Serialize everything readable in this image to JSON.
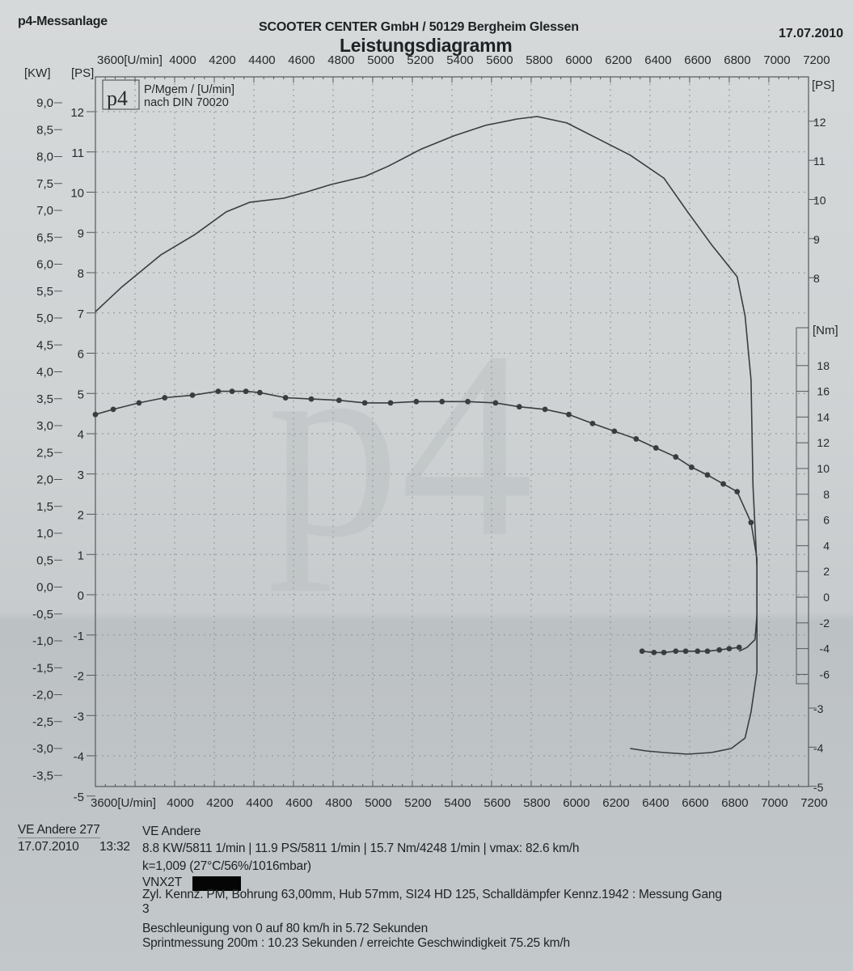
{
  "header": {
    "left": "p4-Messanlage",
    "center": "SCOOTER CENTER GmbH / 50129 Bergheim Glessen",
    "date": "17.07.2010",
    "title": "Leistungsdiagramm"
  },
  "legend_box": {
    "logo": "p4",
    "line1": "P/Mgem / [U/min]",
    "line2": "nach DIN 70020"
  },
  "watermark": "p4",
  "colors": {
    "curve": "#3a3d3f",
    "grid": "#8e9395",
    "paper": "#cfd3d4"
  },
  "chart_data": {
    "type": "line",
    "title": "Leistungsdiagramm",
    "x_axis": {
      "unit_label": "3600[U/min]",
      "range": [
        3600,
        7200
      ],
      "ticks": [
        4000,
        4200,
        4400,
        4600,
        4800,
        5000,
        5200,
        5400,
        5600,
        5800,
        6000,
        6200,
        6400,
        6600,
        6800,
        7000,
        7200
      ]
    },
    "y_left_kw": {
      "label": "[KW]",
      "range": [
        -3.5,
        9.0
      ],
      "ticks": [
        "9,0",
        "8,5",
        "8,0",
        "7,5",
        "7,0",
        "6,5",
        "6,0",
        "5,5",
        "5,0",
        "4,5",
        "4,0",
        "3,5",
        "3,0",
        "2,5",
        "2,0",
        "1,5",
        "1,0",
        "0,5",
        "0,0",
        "-0,5",
        "-1,0",
        "-1,5",
        "-2,0",
        "-2,5",
        "-3,0",
        "-3,5"
      ]
    },
    "y_left_ps": {
      "label": "[PS]",
      "range": [
        -5,
        12
      ],
      "ticks": [
        12,
        11,
        10,
        9,
        8,
        7,
        6,
        5,
        4,
        3,
        2,
        1,
        0,
        -1,
        -2,
        -3,
        -4,
        -5
      ]
    },
    "y_right_ps": {
      "label": "[PS]",
      "ticks": [
        12,
        11,
        10,
        9,
        8,
        -3,
        -4,
        -5
      ]
    },
    "y_right_nm": {
      "label": "[Nm]",
      "range": [
        -6,
        18
      ],
      "ticks": [
        18,
        16,
        14,
        12,
        10,
        8,
        6,
        4,
        2,
        0,
        -2,
        -4,
        -6
      ]
    },
    "grid": true,
    "series": [
      {
        "axis": "PS",
        "markers": false,
        "points": [
          [
            3600,
            7.03
          ],
          [
            3730,
            7.63
          ],
          [
            3930,
            8.44
          ],
          [
            4100,
            8.94
          ],
          [
            4260,
            9.51
          ],
          [
            4380,
            9.75
          ],
          [
            4550,
            9.85
          ],
          [
            4670,
            10.01
          ],
          [
            4790,
            10.19
          ],
          [
            4960,
            10.39
          ],
          [
            5080,
            10.65
          ],
          [
            5240,
            11.06
          ],
          [
            5410,
            11.4
          ],
          [
            5570,
            11.66
          ],
          [
            5730,
            11.82
          ],
          [
            5830,
            11.88
          ],
          [
            5980,
            11.72
          ],
          [
            6140,
            11.32
          ],
          [
            6300,
            10.92
          ],
          [
            6470,
            10.35
          ],
          [
            6590,
            9.51
          ],
          [
            6710,
            8.7
          ],
          [
            6840,
            7.9
          ],
          [
            6880,
            6.93
          ],
          [
            6910,
            5.33
          ],
          [
            6920,
            2.71
          ],
          [
            6940,
            0.7
          ],
          [
            6940,
            -0.5
          ],
          [
            6940,
            -1.91
          ],
          [
            6910,
            -2.91
          ],
          [
            6880,
            -3.56
          ],
          [
            6810,
            -3.82
          ],
          [
            6710,
            -3.92
          ],
          [
            6590,
            -3.96
          ],
          [
            6470,
            -3.92
          ],
          [
            6380,
            -3.88
          ],
          [
            6300,
            -3.82
          ]
        ]
      },
      {
        "axis": "Nm",
        "markers": true,
        "points": [
          [
            3600,
            14.2
          ],
          [
            3690,
            14.6
          ],
          [
            3820,
            15.1
          ],
          [
            3950,
            15.5
          ],
          [
            4090,
            15.7
          ],
          [
            4220,
            16.0
          ],
          [
            4290,
            16.0
          ],
          [
            4360,
            16.0
          ],
          [
            4430,
            15.9
          ],
          [
            4560,
            15.5
          ],
          [
            4690,
            15.4
          ],
          [
            4830,
            15.3
          ],
          [
            4960,
            15.1
          ],
          [
            5090,
            15.1
          ],
          [
            5220,
            15.2
          ],
          [
            5350,
            15.2
          ],
          [
            5480,
            15.2
          ],
          [
            5620,
            15.1
          ],
          [
            5740,
            14.8
          ],
          [
            5870,
            14.6
          ],
          [
            5990,
            14.2
          ],
          [
            6110,
            13.5
          ],
          [
            6220,
            12.9
          ],
          [
            6330,
            12.3
          ],
          [
            6430,
            11.6
          ],
          [
            6530,
            10.9
          ],
          [
            6610,
            10.1
          ],
          [
            6690,
            9.5
          ],
          [
            6770,
            8.8
          ],
          [
            6840,
            8.2
          ],
          [
            6910,
            5.8
          ]
        ]
      },
      {
        "axis": "Nm",
        "markers": false,
        "points": [
          [
            6910,
            5.8
          ],
          [
            6940,
            3.0
          ],
          [
            6940,
            -1.4
          ],
          [
            6930,
            -3.3
          ],
          [
            6890,
            -3.9
          ],
          [
            6850,
            -4.2
          ]
        ]
      },
      {
        "axis": "Nm",
        "markers": true,
        "points": [
          [
            6850,
            -3.9
          ],
          [
            6800,
            -4.0
          ],
          [
            6750,
            -4.1
          ],
          [
            6690,
            -4.2
          ],
          [
            6640,
            -4.2
          ],
          [
            6580,
            -4.2
          ],
          [
            6530,
            -4.2
          ],
          [
            6470,
            -4.3
          ],
          [
            6420,
            -4.3
          ],
          [
            6360,
            -4.2
          ]
        ]
      }
    ]
  },
  "info": {
    "run_name": "VE Andere 277",
    "run_date": "17.07.2010",
    "run_time": "13:32",
    "vehicle": "VE Andere",
    "summary": "8.8 KW/5811 1/min  |  11.9 PS/5811 1/min  |  15.7 Nm/4248 1/min | vmax: 82.6 km/h",
    "correction": "k=1,009 (27°C/56%/1016mbar)",
    "vin": "VNX2T",
    "setup": "Zyl. Kennz. PM, Bohrung 63,00mm, Hub 57mm, SI24 HD 125, Schalldämpfer Kennz.1942 : Messung Gang",
    "setup_cont": "3",
    "accel": "Beschleunigung von 0 auf 80 km/h in 5.72 Sekunden",
    "sprint": "Sprintmessung 200m : 10.23 Sekunden / erreichte Geschwindigkeit 75.25 km/h"
  }
}
